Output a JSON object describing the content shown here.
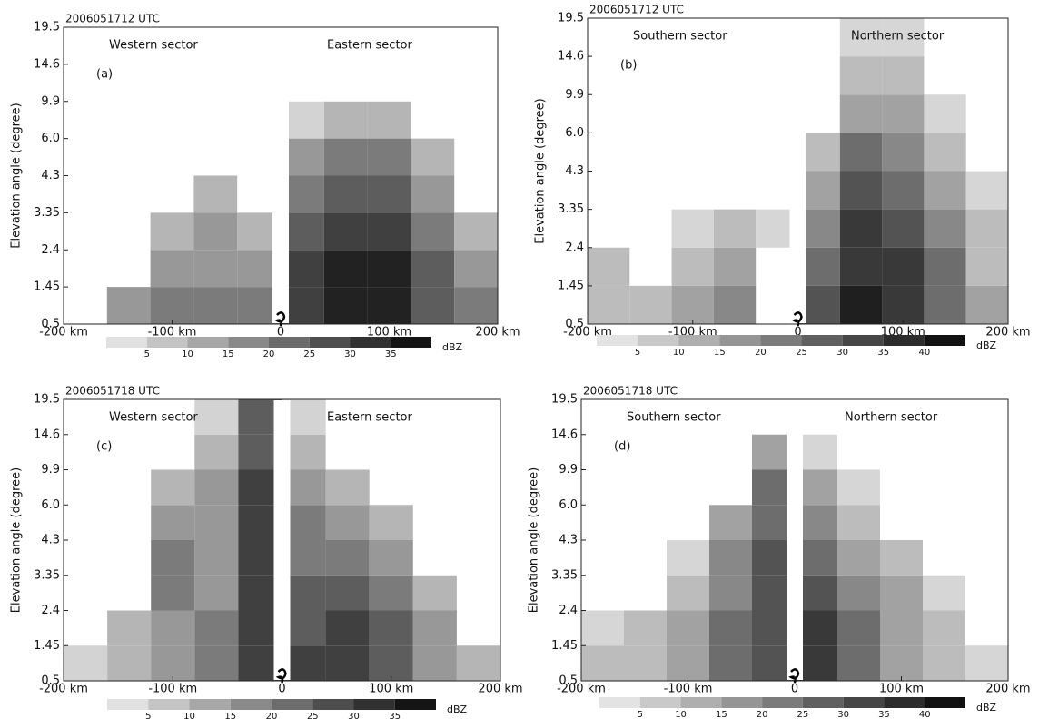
{
  "chart_data": [
    {
      "type": "heatmap",
      "title": "2006051712 UTC",
      "panel_label": "(a)",
      "annotations": [
        "Western sector",
        "Eastern sector"
      ],
      "y_label": "Elevation angle (degree)",
      "x": [
        -180,
        -140,
        -100,
        -60,
        -20,
        20,
        60,
        100,
        140,
        180
      ],
      "field": [
        [
          null,
          15,
          20,
          20,
          20,
          30,
          35,
          35,
          25,
          20
        ],
        [
          null,
          null,
          15,
          15,
          15,
          30,
          35,
          35,
          25,
          15
        ],
        [
          null,
          null,
          10,
          15,
          10,
          25,
          30,
          30,
          20,
          10
        ],
        [
          null,
          null,
          null,
          10,
          null,
          20,
          25,
          25,
          15,
          null
        ],
        [
          null,
          null,
          null,
          null,
          null,
          15,
          20,
          20,
          10,
          null
        ],
        [
          null,
          null,
          null,
          null,
          null,
          5,
          10,
          10,
          null,
          null
        ],
        [
          null,
          null,
          null,
          null,
          null,
          null,
          null,
          null,
          null,
          null
        ],
        [
          null,
          null,
          null,
          null,
          null,
          null,
          null,
          null,
          null,
          null
        ]
      ],
      "xlim": [
        -200,
        200
      ],
      "xticks": [
        {
          "value": -200,
          "label": "-200 km"
        },
        {
          "value": -100,
          "label": "-100 km"
        },
        0,
        {
          "value": 100,
          "label": "100 km"
        },
        {
          "value": 200,
          "label": "200 km"
        }
      ],
      "ylim": [
        0.5,
        19.5
      ],
      "yticks": [
        0.5,
        1.45,
        2.4,
        3.35,
        4.3,
        {
          "value": 6,
          "label": "6.0"
        },
        9.9,
        14.6,
        19.5
      ],
      "colorbar": {
        "lim": [
          0,
          40
        ],
        "ticks": [
          5,
          10,
          15,
          20,
          25,
          30,
          35
        ],
        "unit": "dBZ"
      }
    },
    {
      "type": "heatmap",
      "title": "2006051712 UTC",
      "panel_label": "(b)",
      "annotations": [
        "Southern sector",
        "Northern sector"
      ],
      "y_label": "Elevation angle (degree)",
      "x": [
        -180,
        -140,
        -100,
        -60,
        -20,
        20,
        60,
        100,
        140,
        180
      ],
      "field": [
        [
          10,
          10,
          15,
          20,
          null,
          30,
          40,
          35,
          25,
          15
        ],
        [
          10,
          null,
          10,
          15,
          null,
          25,
          35,
          35,
          25,
          10
        ],
        [
          null,
          null,
          5,
          10,
          5,
          20,
          35,
          30,
          20,
          10
        ],
        [
          null,
          null,
          null,
          null,
          null,
          15,
          30,
          25,
          15,
          5
        ],
        [
          null,
          null,
          null,
          null,
          null,
          10,
          25,
          20,
          10,
          null
        ],
        [
          null,
          null,
          null,
          null,
          null,
          null,
          15,
          15,
          5,
          null
        ],
        [
          null,
          null,
          null,
          null,
          null,
          null,
          10,
          10,
          null,
          null
        ],
        [
          null,
          null,
          null,
          null,
          null,
          null,
          5,
          5,
          null,
          null
        ]
      ],
      "xlim": [
        -200,
        200
      ],
      "xticks": [
        {
          "value": -200,
          "label": "-200 km"
        },
        {
          "value": -100,
          "label": "-100 km"
        },
        0,
        {
          "value": 100,
          "label": "100 km"
        },
        {
          "value": 200,
          "label": "200 km"
        }
      ],
      "ylim": [
        0.5,
        19.5
      ],
      "yticks": [
        0.5,
        1.45,
        2.4,
        3.35,
        4.3,
        {
          "value": 6,
          "label": "6.0"
        },
        9.9,
        14.6,
        19.5
      ],
      "colorbar": {
        "lim": [
          0,
          45
        ],
        "ticks": [
          5,
          10,
          15,
          20,
          25,
          30,
          35,
          40
        ],
        "unit": "dBZ"
      }
    },
    {
      "type": "heatmap",
      "title": "2006051718 UTC",
      "panel_label": "(c)",
      "annotations": [
        "Western sector",
        "Eastern sector"
      ],
      "y_label": "Elevation angle (degree)",
      "x": [
        -180,
        -140,
        -100,
        -60,
        -20,
        20,
        60,
        100,
        140,
        180
      ],
      "field": [
        [
          5,
          10,
          15,
          20,
          30,
          30,
          30,
          25,
          15,
          10
        ],
        [
          null,
          10,
          15,
          20,
          30,
          25,
          30,
          25,
          15,
          null
        ],
        [
          null,
          null,
          20,
          15,
          30,
          25,
          25,
          20,
          10,
          null
        ],
        [
          null,
          null,
          20,
          15,
          30,
          20,
          20,
          15,
          null,
          null
        ],
        [
          null,
          null,
          15,
          15,
          30,
          20,
          15,
          10,
          null,
          null
        ],
        [
          null,
          null,
          10,
          15,
          30,
          15,
          10,
          null,
          null,
          null
        ],
        [
          null,
          null,
          null,
          10,
          25,
          10,
          null,
          null,
          null,
          null
        ],
        [
          null,
          null,
          null,
          5,
          25,
          5,
          null,
          null,
          null,
          null
        ]
      ],
      "xlim": [
        -200,
        200
      ],
      "xticks": [
        {
          "value": -200,
          "label": "-200 km"
        },
        {
          "value": -100,
          "label": "-100 km"
        },
        0,
        {
          "value": 100,
          "label": "100 km"
        },
        {
          "value": 200,
          "label": "200 km"
        }
      ],
      "ylim": [
        0.5,
        19.5
      ],
      "yticks": [
        0.5,
        1.45,
        2.4,
        3.35,
        4.3,
        {
          "value": 6,
          "label": "6.0"
        },
        9.9,
        14.6,
        19.5
      ],
      "colorbar": {
        "lim": [
          0,
          40
        ],
        "ticks": [
          5,
          10,
          15,
          20,
          25,
          30,
          35
        ],
        "unit": "dBZ"
      }
    },
    {
      "type": "heatmap",
      "title": "2006051718 UTC",
      "panel_label": "(d)",
      "annotations": [
        "Southern sector",
        "Northern sector"
      ],
      "y_label": "Elevation angle (degree)",
      "x": [
        -180,
        -140,
        -100,
        -60,
        -20,
        20,
        60,
        100,
        140,
        180
      ],
      "field": [
        [
          10,
          10,
          15,
          25,
          30,
          35,
          25,
          15,
          10,
          5
        ],
        [
          5,
          10,
          15,
          25,
          30,
          35,
          25,
          15,
          10,
          null
        ],
        [
          null,
          null,
          10,
          20,
          30,
          30,
          20,
          15,
          5,
          null
        ],
        [
          null,
          null,
          5,
          20,
          30,
          25,
          15,
          10,
          null,
          null
        ],
        [
          null,
          null,
          null,
          15,
          25,
          20,
          10,
          null,
          null,
          null
        ],
        [
          null,
          null,
          null,
          null,
          25,
          15,
          5,
          null,
          null,
          null
        ],
        [
          null,
          null,
          null,
          null,
          15,
          5,
          null,
          null,
          null,
          null
        ],
        [
          null,
          null,
          null,
          null,
          null,
          null,
          null,
          null,
          null,
          null
        ]
      ],
      "xlim": [
        -200,
        200
      ],
      "xticks": [
        {
          "value": -200,
          "label": "-200 km"
        },
        {
          "value": -100,
          "label": "-100 km"
        },
        0,
        {
          "value": 100,
          "label": "100 km"
        },
        {
          "value": 200,
          "label": "200 km"
        }
      ],
      "ylim": [
        0.5,
        19.5
      ],
      "yticks": [
        0.5,
        1.45,
        2.4,
        3.35,
        4.3,
        {
          "value": 6,
          "label": "6.0"
        },
        9.9,
        14.6,
        19.5
      ],
      "colorbar": {
        "lim": [
          0,
          45
        ],
        "ticks": [
          5,
          10,
          15,
          20,
          25,
          30,
          35,
          40
        ],
        "unit": "dBZ"
      }
    }
  ]
}
